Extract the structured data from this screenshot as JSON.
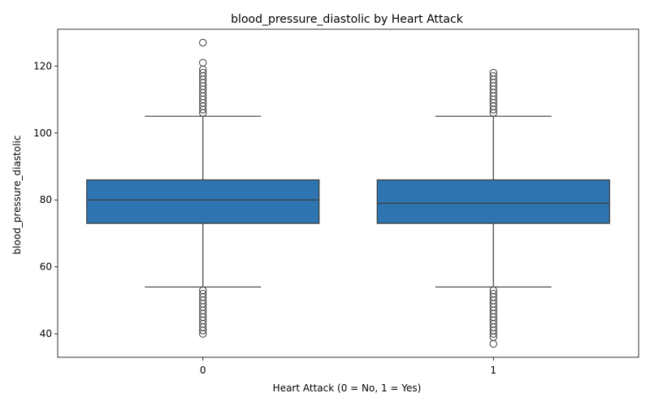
{
  "chart_data": {
    "type": "box",
    "title": "blood_pressure_diastolic by Heart Attack",
    "xlabel": "Heart Attack (0 = No, 1 = Yes)",
    "ylabel": "blood_pressure_diastolic",
    "categories": [
      "0",
      "1"
    ],
    "ylim": [
      33,
      131
    ],
    "yticks": [
      40,
      60,
      80,
      100,
      120
    ],
    "grid": false,
    "box_color": "#2e74b0",
    "line_color": "#3d3d3d",
    "boxes": [
      {
        "category": "0",
        "whisker_low": 54,
        "q1": 73,
        "median": 80,
        "q3": 86,
        "whisker_high": 105,
        "outliers": [
          40,
          41,
          42,
          43,
          44,
          45,
          46,
          47,
          48,
          49,
          50,
          51,
          52,
          53,
          106,
          107,
          108,
          109,
          110,
          111,
          112,
          113,
          114,
          115,
          116,
          117,
          118,
          119,
          121,
          127
        ]
      },
      {
        "category": "1",
        "whisker_low": 54,
        "q1": 73,
        "median": 79,
        "q3": 86,
        "whisker_high": 105,
        "outliers": [
          37,
          39,
          40,
          41,
          42,
          43,
          44,
          45,
          46,
          47,
          48,
          49,
          50,
          51,
          52,
          53,
          106,
          107,
          108,
          109,
          110,
          111,
          112,
          113,
          114,
          115,
          116,
          117,
          118
        ]
      }
    ]
  }
}
